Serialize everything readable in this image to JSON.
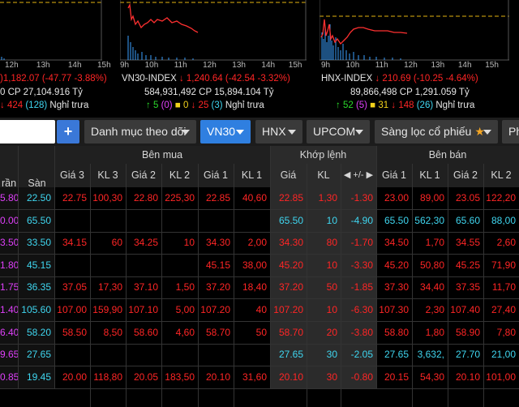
{
  "index_panels": [
    {
      "name": "",
      "times": [
        "12h",
        "13h",
        "14h",
        "15h"
      ],
      "line1": {
        "value": "1,182.07",
        "change": "(-47.77 -3.88%)",
        "prefix": ")"
      },
      "line2": {
        "lead": "0",
        "cp_label": "CP",
        "volume": "27,104.916",
        "unit": "Tỷ"
      },
      "line3": {
        "down": "424",
        "neutral": "(128)",
        "status": "Nghỉ trưa"
      }
    },
    {
      "name": "VN30-INDEX",
      "times": [
        "9h",
        "10h",
        "11h",
        "12h",
        "13h",
        "14h",
        "15h"
      ],
      "line1": {
        "value": "1,240.64",
        "change": "(-42.54 -3.32%)"
      },
      "line2": {
        "shares": "584,931,492",
        "cp_label": "CP",
        "volume": "15,894.104",
        "unit": "Tỷ"
      },
      "line3": {
        "up": "5",
        "ceiling": "(0)",
        "flat": "0",
        "down": "25",
        "floor": "(3)",
        "status": "Nghỉ trưa"
      }
    },
    {
      "name": "HNX-INDEX",
      "times": [
        "9h",
        "10h",
        "11h",
        "12h",
        "13h",
        "14h",
        "15h"
      ],
      "line1": {
        "value": "210.69",
        "change": "(-10.25 -4.64%)"
      },
      "line2": {
        "shares": "89,866,498",
        "cp_label": "CP",
        "volume": "1,291.059",
        "unit": "Tỷ"
      },
      "line3": {
        "up": "52",
        "ceiling": "(5)",
        "flat": "31",
        "down": "148",
        "floor": "(26)",
        "status": "Nghỉ trưa"
      }
    }
  ],
  "toolbar": {
    "add_label": "+",
    "watchlist_label": "Danh mục theo dõi",
    "vn30_label": "VN30",
    "hnx_label": "HNX",
    "upcom_label": "UPCOM",
    "filter_label": "Sàng lọc cổ phiếu",
    "partial_label": "Ph"
  },
  "table": {
    "groups": {
      "bid": "Bên mua",
      "match": "Khớp lệnh",
      "ask": "Bên bán"
    },
    "headers": {
      "tran": "rần",
      "san": "Sàn",
      "gia3": "Giá 3",
      "kl3": "KL 3",
      "gia2": "Giá 2",
      "kl2": "KL 2",
      "gia1": "Giá 1",
      "kl1": "KL 1",
      "gia": "Giá",
      "kl": "KL",
      "change": "+/-",
      "agia1": "Giá 1",
      "akl1": "KL 1",
      "agia2": "Giá 2",
      "akl2": "KL 2"
    },
    "rows": [
      {
        "tran": "5.80",
        "san": "22.50",
        "g3": "22.75",
        "k3": "100,30",
        "g2": "22.80",
        "k2": "225,30",
        "g1": "22.85",
        "k1": "40,60",
        "p": "22.85",
        "v": "1,30",
        "c": "-1.30",
        "ag1": "23.00",
        "ak1": "89,00",
        "ag2": "23.05",
        "ak2": "122,20",
        "color": "red"
      },
      {
        "tran": "0.00",
        "san": "65.50",
        "g3": "",
        "k3": "",
        "g2": "",
        "k2": "",
        "g1": "",
        "k1": "",
        "p": "65.50",
        "v": "10",
        "c": "-4.90",
        "ag1": "65.50",
        "ak1": "562,30",
        "ag2": "65.60",
        "ak2": "88,00",
        "color": "cyan"
      },
      {
        "tran": "3.50",
        "san": "33.50",
        "g3": "34.15",
        "k3": "60",
        "g2": "34.25",
        "k2": "10",
        "g1": "34.30",
        "k1": "2,00",
        "p": "34.30",
        "v": "80",
        "c": "-1.70",
        "ag1": "34.50",
        "ak1": "1,70",
        "ag2": "34.55",
        "ak2": "2,60",
        "color": "red"
      },
      {
        "tran": "1.80",
        "san": "45.15",
        "g3": "",
        "k3": "",
        "g2": "",
        "k2": "",
        "g1": "45.15",
        "k1": "38,00",
        "p": "45.20",
        "v": "10",
        "c": "-3.30",
        "ag1": "45.20",
        "ak1": "50,80",
        "ag2": "45.25",
        "ak2": "71,90",
        "color": "red"
      },
      {
        "tran": "1.75",
        "san": "36.35",
        "g3": "37.05",
        "k3": "17,30",
        "g2": "37.10",
        "k2": "1,50",
        "g1": "37.20",
        "k1": "18,40",
        "p": "37.20",
        "v": "50",
        "c": "-1.85",
        "ag1": "37.30",
        "ak1": "34,40",
        "ag2": "37.35",
        "ak2": "11,70",
        "color": "red"
      },
      {
        "tran": "1.40",
        "san": "105.60",
        "g3": "107.00",
        "k3": "159,90",
        "g2": "107.10",
        "k2": "5,00",
        "g1": "107.20",
        "k1": "40",
        "p": "107.20",
        "v": "10",
        "c": "-6.30",
        "ag1": "107.30",
        "ak1": "2,30",
        "ag2": "107.40",
        "ak2": "27,40",
        "color": "red"
      },
      {
        "tran": "6.40",
        "san": "58.20",
        "g3": "58.50",
        "k3": "8,50",
        "g2": "58.60",
        "k2": "4,60",
        "g1": "58.70",
        "k1": "50",
        "p": "58.70",
        "v": "20",
        "c": "-3.80",
        "ag1": "58.80",
        "ak1": "1,80",
        "ag2": "58.90",
        "ak2": "7,80",
        "color": "red"
      },
      {
        "tran": "9.65",
        "san": "27.65",
        "g3": "",
        "k3": "",
        "g2": "",
        "k2": "",
        "g1": "",
        "k1": "",
        "p": "27.65",
        "v": "30",
        "c": "-2.05",
        "ag1": "27.65",
        "ak1": "3,632,",
        "ag2": "27.70",
        "ak2": "21,00",
        "color": "cyan"
      },
      {
        "tran": "0.85",
        "san": "19.45",
        "g3": "20.00",
        "k3": "118,80",
        "g2": "20.05",
        "k2": "183,50",
        "g1": "20.10",
        "k1": "31,60",
        "p": "20.10",
        "v": "30",
        "c": "-0.80",
        "ag1": "20.15",
        "ak1": "54,30",
        "ag2": "20.10",
        "ak2": "101,00",
        "color": "red"
      }
    ]
  }
}
